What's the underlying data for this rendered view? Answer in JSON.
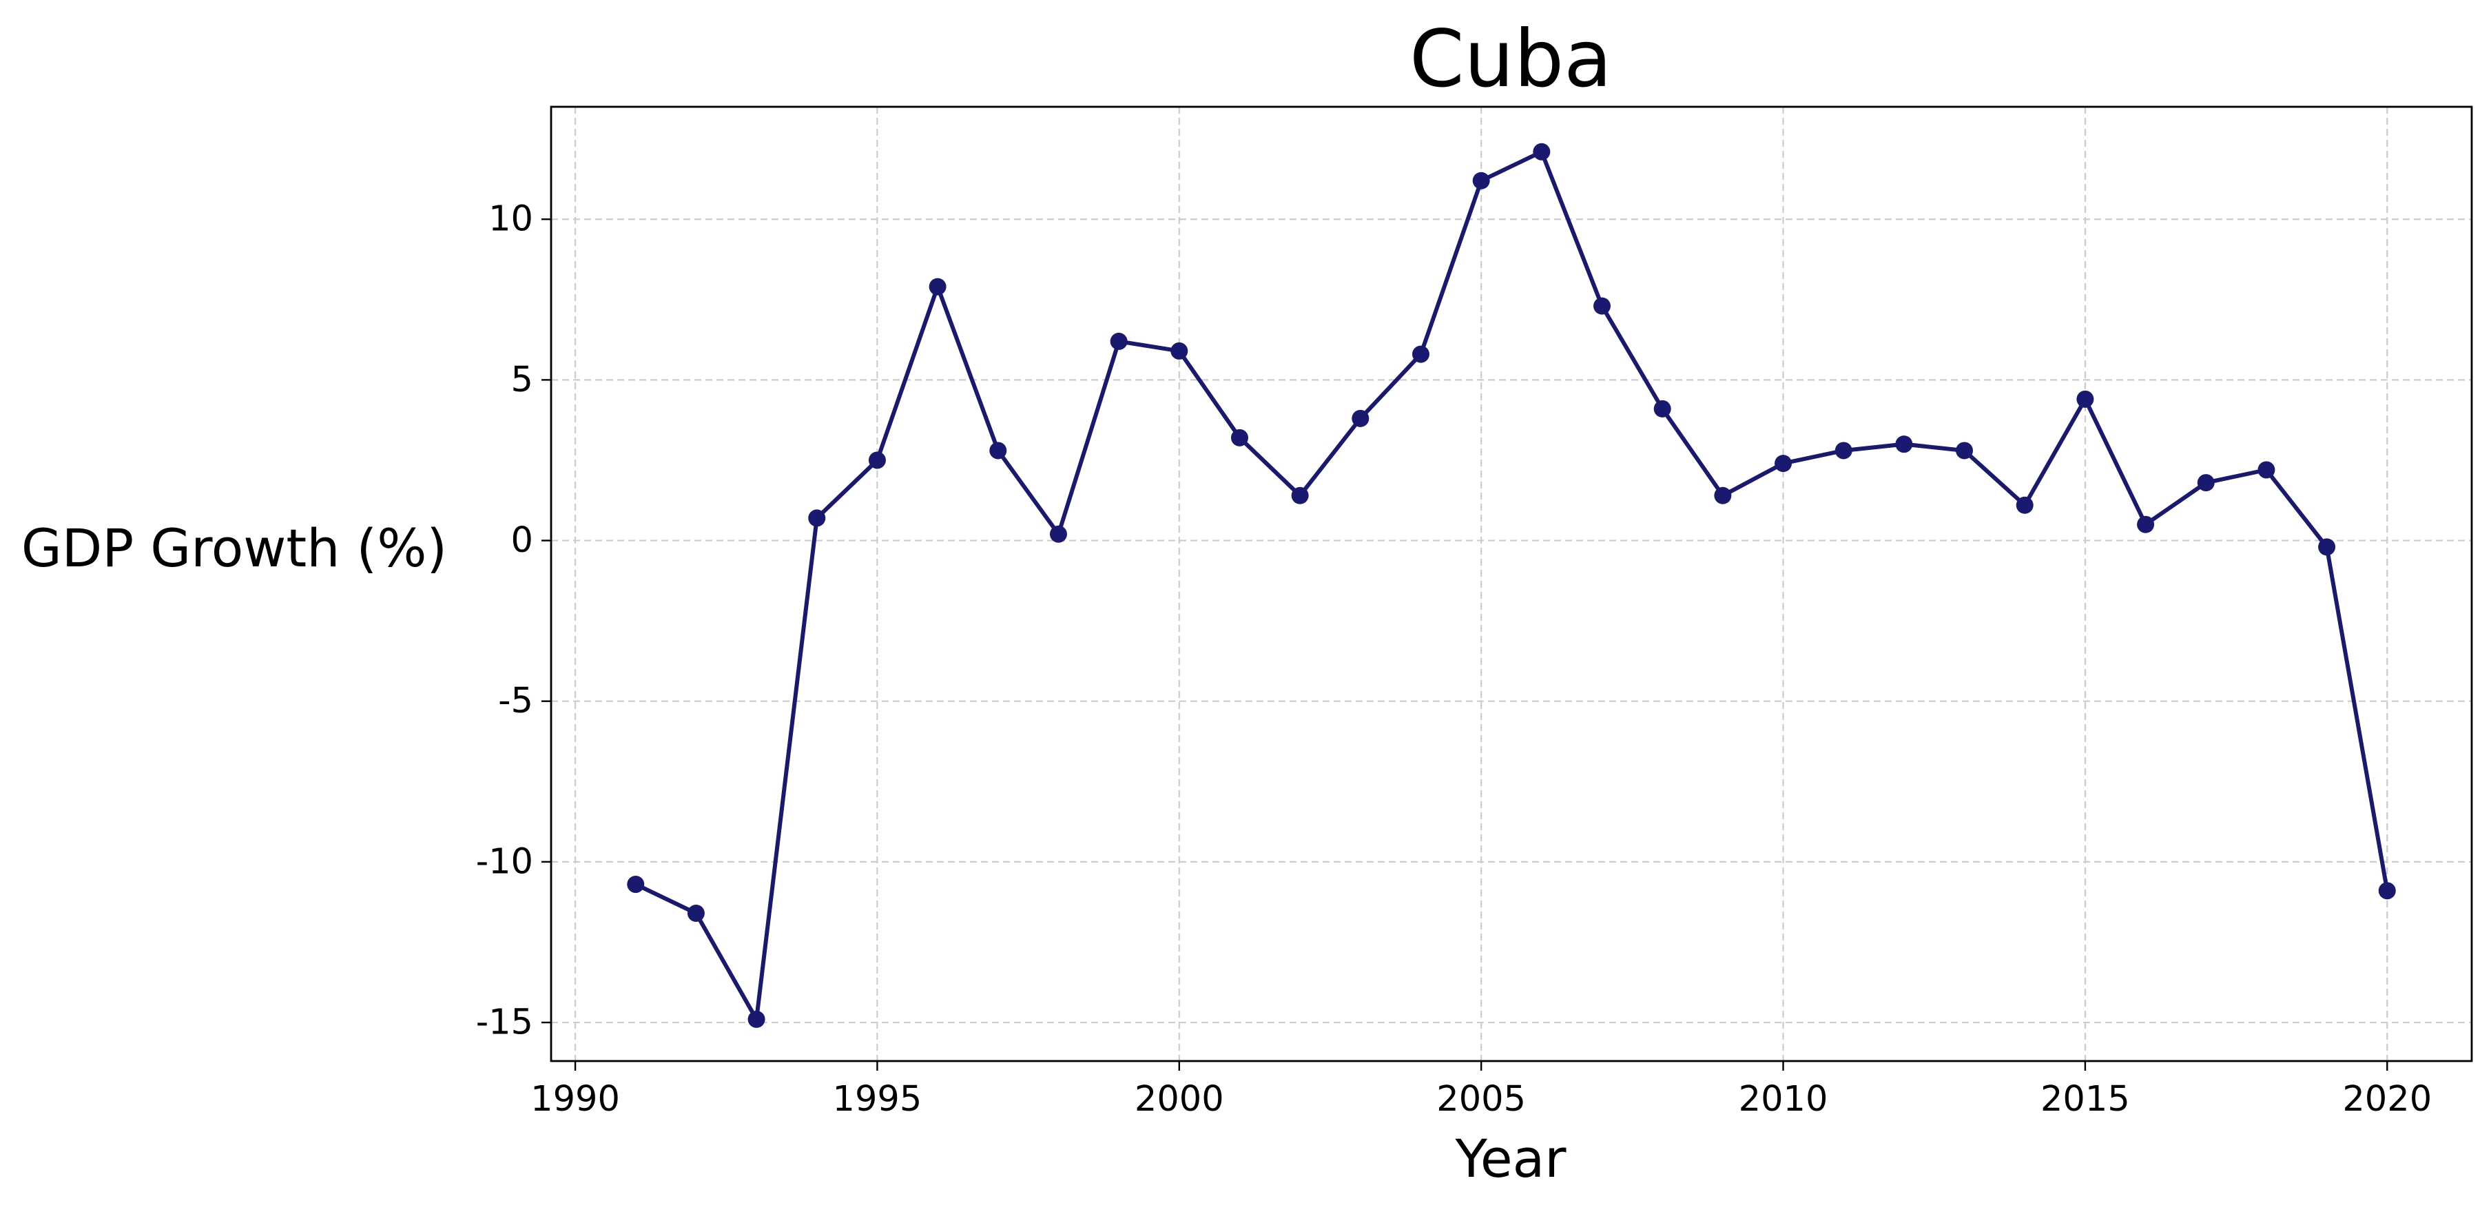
{
  "chart_data": {
    "type": "line",
    "title": "Cuba",
    "xlabel": "Year",
    "ylabel": "GDP Growth (%)",
    "xlim": [
      1989.6,
      2021.4
    ],
    "ylim": [
      -16.2,
      13.5
    ],
    "x_ticks": [
      1990,
      1995,
      2000,
      2005,
      2010,
      2015,
      2020
    ],
    "y_ticks": [
      -15,
      -10,
      -5,
      0,
      5,
      10
    ],
    "grid": true,
    "legend": "none",
    "series": [
      {
        "color": "#191970",
        "marker": "circle",
        "x": [
          1991,
          1992,
          1993,
          1994,
          1995,
          1996,
          1997,
          1998,
          1999,
          2000,
          2001,
          2002,
          2003,
          2004,
          2005,
          2006,
          2007,
          2008,
          2009,
          2010,
          2011,
          2012,
          2013,
          2014,
          2015,
          2016,
          2017,
          2018,
          2019,
          2020
        ],
        "y": [
          -10.7,
          -11.6,
          -14.9,
          0.7,
          2.5,
          7.9,
          2.8,
          0.2,
          6.2,
          5.9,
          3.2,
          1.4,
          3.8,
          5.8,
          11.2,
          12.1,
          7.3,
          4.1,
          1.4,
          2.4,
          2.8,
          3.0,
          2.8,
          1.1,
          4.4,
          0.5,
          1.8,
          2.2,
          -0.2,
          -10.9
        ]
      }
    ]
  }
}
